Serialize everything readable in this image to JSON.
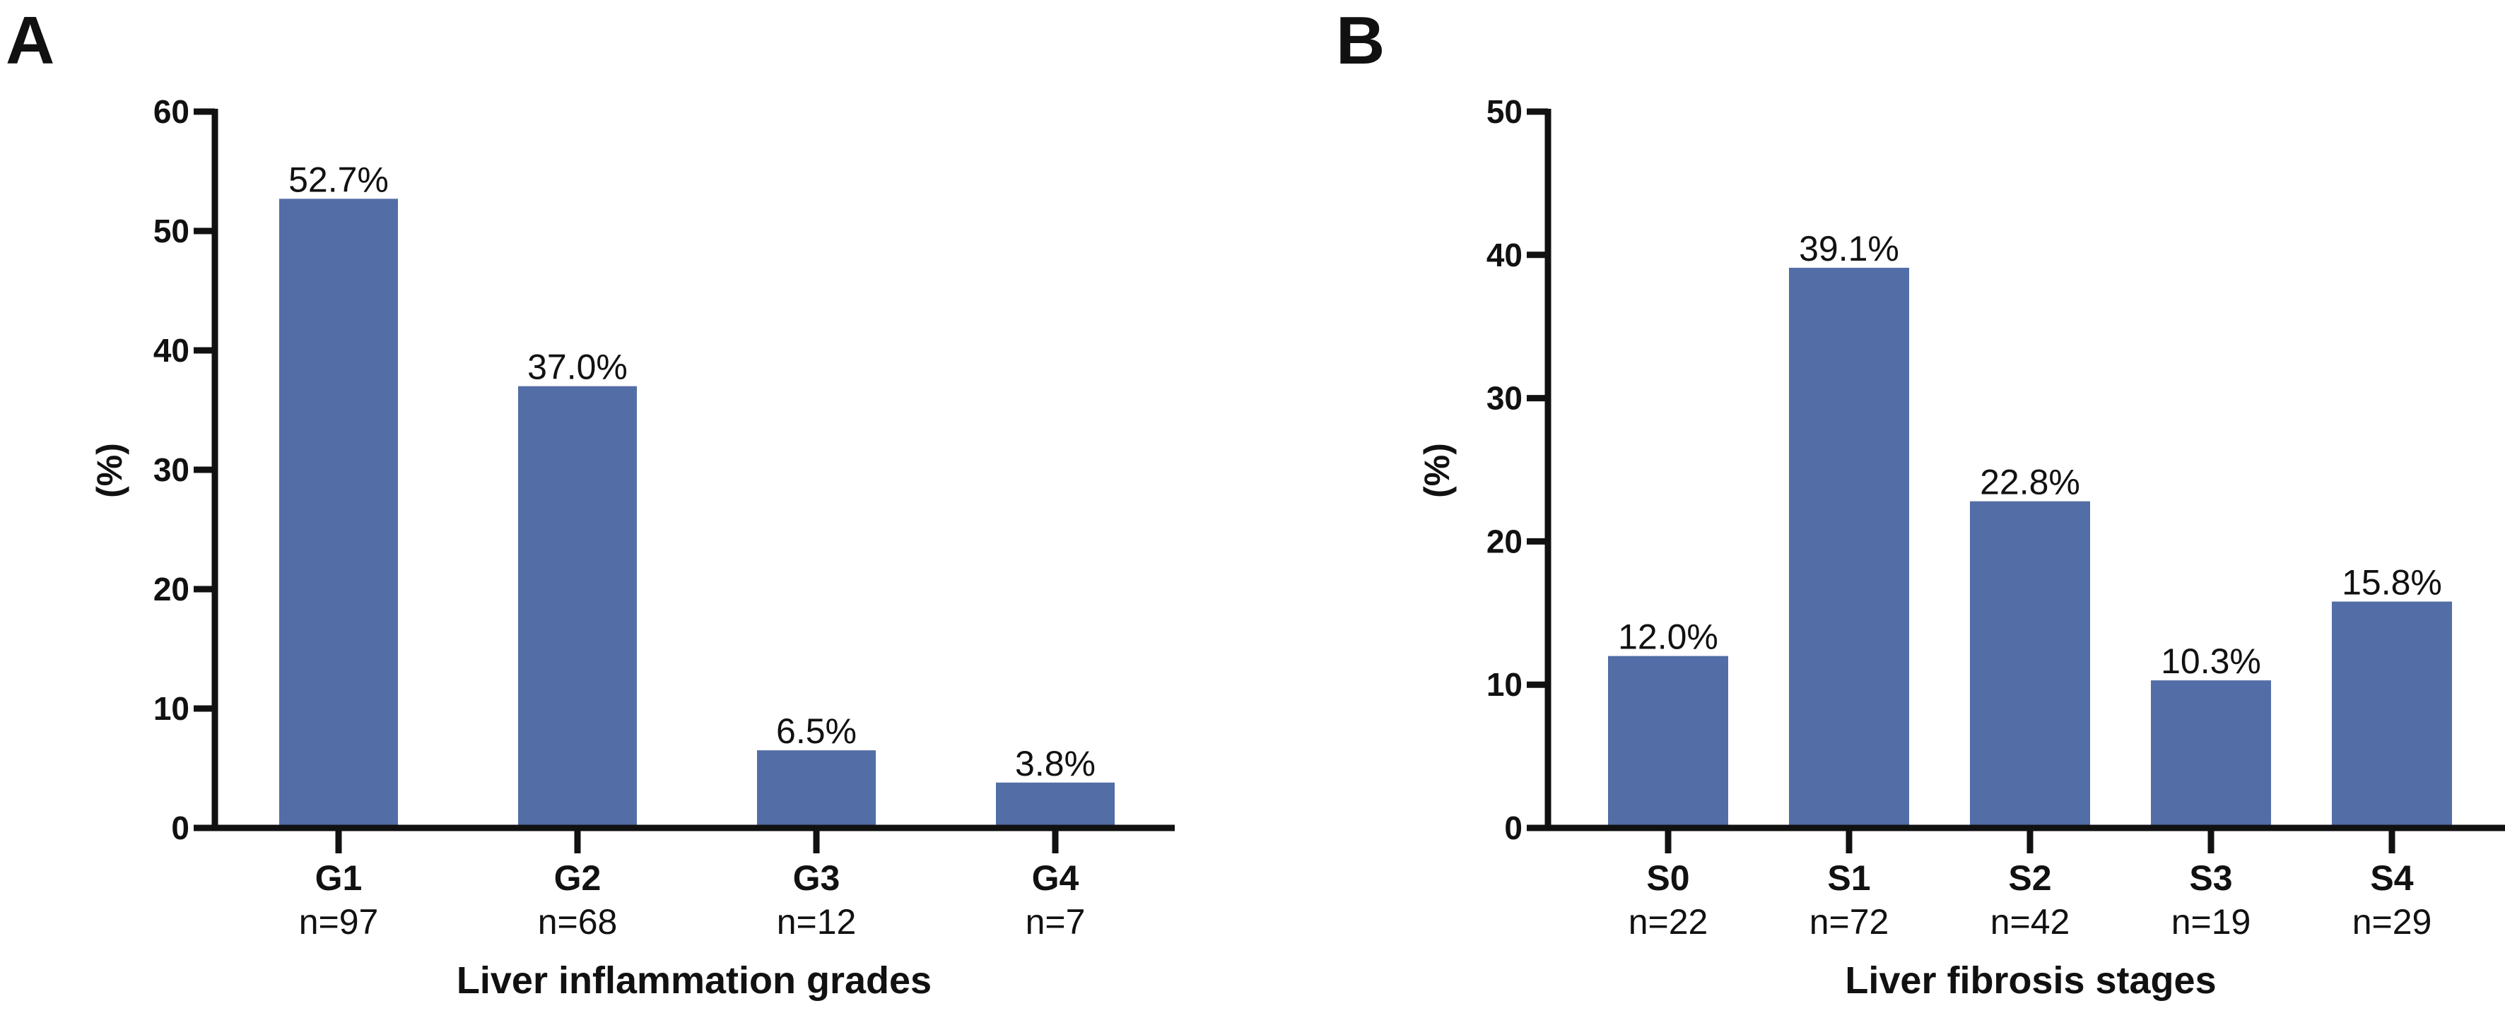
{
  "chart_data": [
    {
      "type": "bar",
      "panel_label": "A",
      "categories": [
        "G1",
        "G2",
        "G3",
        "G4"
      ],
      "sample_sizes": [
        "n=97",
        "n=68",
        "n=12",
        "n=7"
      ],
      "values": [
        52.7,
        37.0,
        6.5,
        3.8
      ],
      "data_labels": [
        "52.7%",
        "37.0%",
        "6.5%",
        "3.8%"
      ],
      "xlabel": "Liver inflammation grades",
      "ylabel": "(%)",
      "ylim": [
        0,
        60
      ],
      "yticks": [
        0,
        10,
        20,
        30,
        40,
        50,
        60
      ],
      "grid": false,
      "bar_color": "#536DA6"
    },
    {
      "type": "bar",
      "panel_label": "B",
      "categories": [
        "S0",
        "S1",
        "S2",
        "S3",
        "S4"
      ],
      "sample_sizes": [
        "n=22",
        "n=72",
        "n=42",
        "n=19",
        "n=29"
      ],
      "values": [
        12.0,
        39.1,
        22.8,
        10.3,
        15.8
      ],
      "data_labels": [
        "12.0%",
        "39.1%",
        "22.8%",
        "10.3%",
        "15.8%"
      ],
      "xlabel": "Liver fibrosis stages",
      "ylabel": "(%)",
      "ylim": [
        0,
        50
      ],
      "yticks": [
        0,
        10,
        20,
        30,
        40,
        50
      ],
      "grid": false,
      "bar_color": "#536DA6"
    }
  ]
}
